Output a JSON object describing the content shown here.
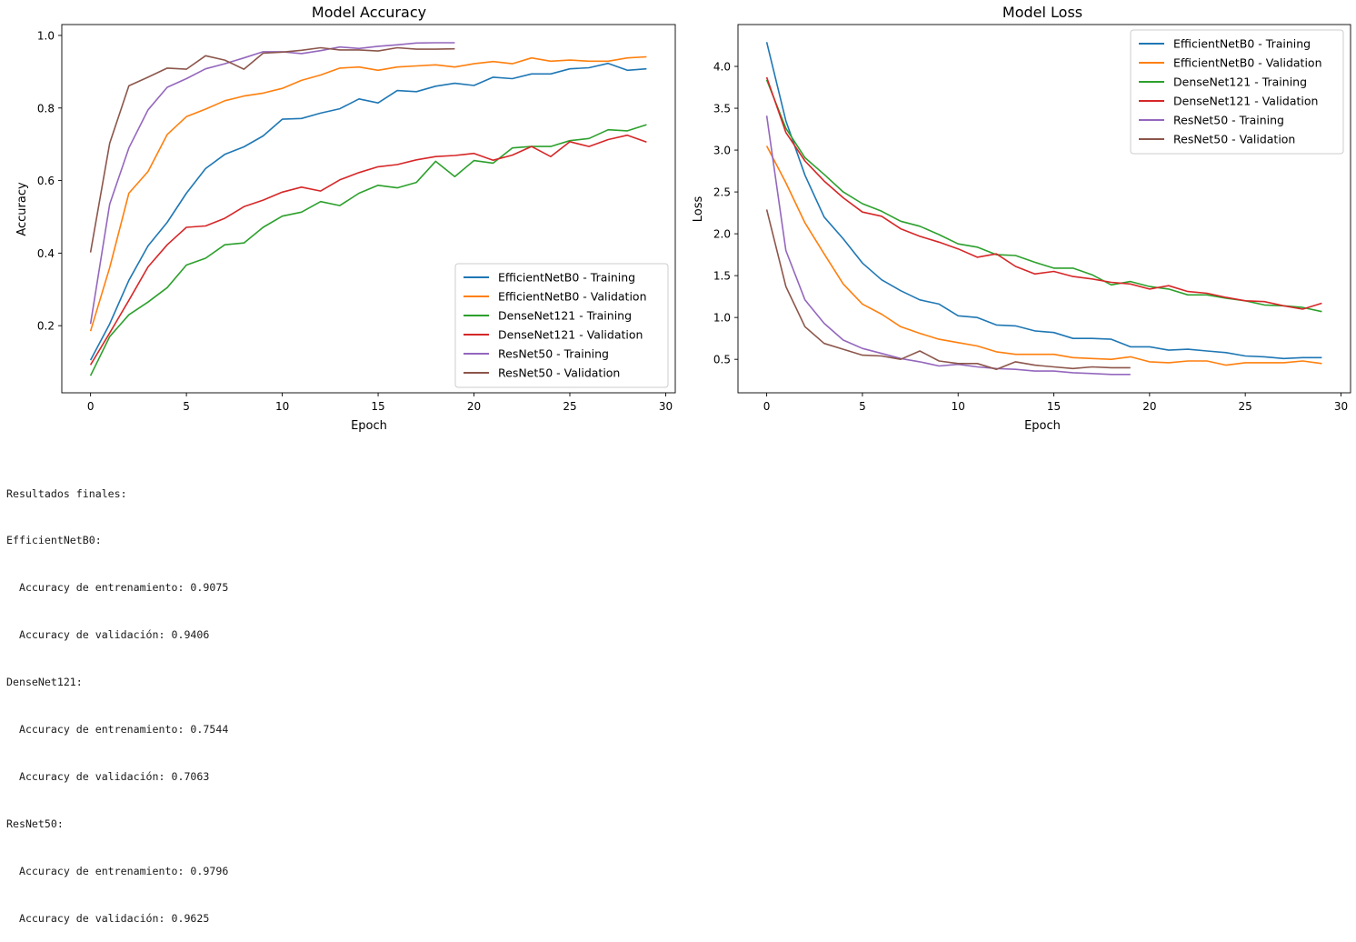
{
  "colors": {
    "blue": "#1f77b4",
    "orange": "#ff7f0e",
    "green": "#2ca02c",
    "red": "#d62728",
    "purple": "#9467bd",
    "brown": "#8c564b"
  },
  "chart_data": [
    {
      "type": "line",
      "title": "Model Accuracy",
      "xlabel": "Epoch",
      "ylabel": "Accuracy",
      "xlim": [
        -1.5,
        30.5
      ],
      "ylim": [
        0.015,
        1.03
      ],
      "xticks": [
        0,
        5,
        10,
        15,
        20,
        25,
        30
      ],
      "yticks": [
        0.2,
        0.4,
        0.6,
        0.8,
        1.0
      ],
      "ytick_labels": [
        "0.2",
        "0.4",
        "0.6",
        "0.8",
        "1.0"
      ],
      "grid": false,
      "legend_position": "lower-right",
      "series": [
        {
          "name": "EfficientNetB0 - Training",
          "color": "blue",
          "values": [
            0.105,
            0.205,
            0.325,
            0.42,
            0.485,
            0.565,
            0.633,
            0.672,
            0.693,
            0.723,
            0.769,
            0.771,
            0.786,
            0.798,
            0.825,
            0.814,
            0.848,
            0.845,
            0.86,
            0.868,
            0.862,
            0.885,
            0.881,
            0.894,
            0.894,
            0.908,
            0.911,
            0.923,
            0.904,
            0.908
          ]
        },
        {
          "name": "EfficientNetB0 - Validation",
          "color": "orange",
          "values": [
            0.185,
            0.36,
            0.565,
            0.625,
            0.727,
            0.776,
            0.797,
            0.82,
            0.833,
            0.841,
            0.854,
            0.876,
            0.891,
            0.91,
            0.913,
            0.904,
            0.913,
            0.916,
            0.919,
            0.913,
            0.922,
            0.928,
            0.922,
            0.938,
            0.929,
            0.932,
            0.929,
            0.929,
            0.938,
            0.941
          ]
        },
        {
          "name": "DenseNet121 - Training",
          "color": "green",
          "values": [
            0.062,
            0.17,
            0.23,
            0.265,
            0.305,
            0.367,
            0.386,
            0.423,
            0.428,
            0.471,
            0.502,
            0.513,
            0.542,
            0.531,
            0.565,
            0.587,
            0.58,
            0.595,
            0.653,
            0.611,
            0.655,
            0.648,
            0.69,
            0.694,
            0.694,
            0.71,
            0.716,
            0.74,
            0.737,
            0.754
          ]
        },
        {
          "name": "DenseNet121 - Validation",
          "color": "red",
          "values": [
            0.092,
            0.18,
            0.27,
            0.362,
            0.423,
            0.471,
            0.475,
            0.496,
            0.528,
            0.546,
            0.568,
            0.582,
            0.571,
            0.602,
            0.622,
            0.638,
            0.644,
            0.657,
            0.666,
            0.669,
            0.675,
            0.656,
            0.67,
            0.694,
            0.666,
            0.707,
            0.694,
            0.713,
            0.725,
            0.706
          ]
        },
        {
          "name": "ResNet50 - Training",
          "color": "purple",
          "values": [
            0.205,
            0.535,
            0.69,
            0.795,
            0.857,
            0.881,
            0.908,
            0.922,
            0.938,
            0.955,
            0.955,
            0.95,
            0.958,
            0.968,
            0.964,
            0.97,
            0.974,
            0.979,
            0.98,
            0.98
          ]
        },
        {
          "name": "ResNet50 - Validation",
          "color": "brown",
          "values": [
            0.402,
            0.703,
            0.861,
            0.885,
            0.91,
            0.907,
            0.944,
            0.932,
            0.907,
            0.951,
            0.954,
            0.959,
            0.966,
            0.96,
            0.96,
            0.957,
            0.966,
            0.962,
            0.962,
            0.963
          ]
        }
      ]
    },
    {
      "type": "line",
      "title": "Model Loss",
      "xlabel": "Epoch",
      "ylabel": "Loss",
      "xlim": [
        -1.5,
        30.5
      ],
      "ylim": [
        0.1,
        4.5
      ],
      "xticks": [
        0,
        5,
        10,
        15,
        20,
        25,
        30
      ],
      "yticks": [
        0.5,
        1.0,
        1.5,
        2.0,
        2.5,
        3.0,
        3.5,
        4.0
      ],
      "ytick_labels": [
        "0.5",
        "1.0",
        "1.5",
        "2.0",
        "2.5",
        "3.0",
        "3.5",
        "4.0"
      ],
      "grid": false,
      "legend_position": "upper-right",
      "series": [
        {
          "name": "EfficientNetB0 - Training",
          "color": "blue",
          "values": [
            4.29,
            3.35,
            2.7,
            2.2,
            1.94,
            1.65,
            1.45,
            1.32,
            1.21,
            1.16,
            1.02,
            1.0,
            0.91,
            0.9,
            0.84,
            0.82,
            0.75,
            0.75,
            0.74,
            0.65,
            0.65,
            0.61,
            0.62,
            0.6,
            0.58,
            0.54,
            0.53,
            0.51,
            0.52,
            0.52
          ]
        },
        {
          "name": "EfficientNetB0 - Validation",
          "color": "orange",
          "values": [
            3.05,
            2.61,
            2.13,
            1.76,
            1.4,
            1.16,
            1.04,
            0.89,
            0.81,
            0.74,
            0.7,
            0.66,
            0.59,
            0.56,
            0.56,
            0.56,
            0.52,
            0.51,
            0.5,
            0.53,
            0.47,
            0.46,
            0.48,
            0.48,
            0.43,
            0.46,
            0.46,
            0.46,
            0.48,
            0.45
          ]
        },
        {
          "name": "DenseNet121 - Training",
          "color": "green",
          "values": [
            3.84,
            3.26,
            2.91,
            2.71,
            2.5,
            2.36,
            2.27,
            2.15,
            2.09,
            1.99,
            1.88,
            1.84,
            1.75,
            1.74,
            1.66,
            1.59,
            1.59,
            1.51,
            1.39,
            1.43,
            1.37,
            1.34,
            1.27,
            1.27,
            1.23,
            1.2,
            1.15,
            1.14,
            1.12,
            1.07
          ]
        },
        {
          "name": "DenseNet121 - Validation",
          "color": "red",
          "values": [
            3.87,
            3.21,
            2.87,
            2.63,
            2.43,
            2.26,
            2.21,
            2.06,
            1.97,
            1.9,
            1.82,
            1.72,
            1.76,
            1.61,
            1.52,
            1.55,
            1.49,
            1.46,
            1.42,
            1.4,
            1.34,
            1.38,
            1.31,
            1.29,
            1.24,
            1.2,
            1.19,
            1.14,
            1.1,
            1.17
          ]
        },
        {
          "name": "ResNet50 - Training",
          "color": "purple",
          "values": [
            3.41,
            1.8,
            1.21,
            0.93,
            0.73,
            0.63,
            0.57,
            0.51,
            0.47,
            0.42,
            0.44,
            0.41,
            0.39,
            0.38,
            0.36,
            0.36,
            0.34,
            0.33,
            0.32,
            0.32
          ]
        },
        {
          "name": "ResNet50 - Validation",
          "color": "brown",
          "values": [
            2.29,
            1.37,
            0.89,
            0.69,
            0.62,
            0.55,
            0.54,
            0.5,
            0.6,
            0.48,
            0.45,
            0.45,
            0.38,
            0.47,
            0.43,
            0.41,
            0.39,
            0.41,
            0.4,
            0.4
          ]
        }
      ]
    }
  ],
  "output_lines": [
    "Resultados finales:",
    "EfficientNetB0:",
    "  Accuracy de entrenamiento: 0.9075",
    "  Accuracy de validación: 0.9406",
    "DenseNet121:",
    "  Accuracy de entrenamiento: 0.7544",
    "  Accuracy de validación: 0.7063",
    "ResNet50:",
    "  Accuracy de entrenamiento: 0.9796",
    "  Accuracy de validación: 0.9625"
  ]
}
